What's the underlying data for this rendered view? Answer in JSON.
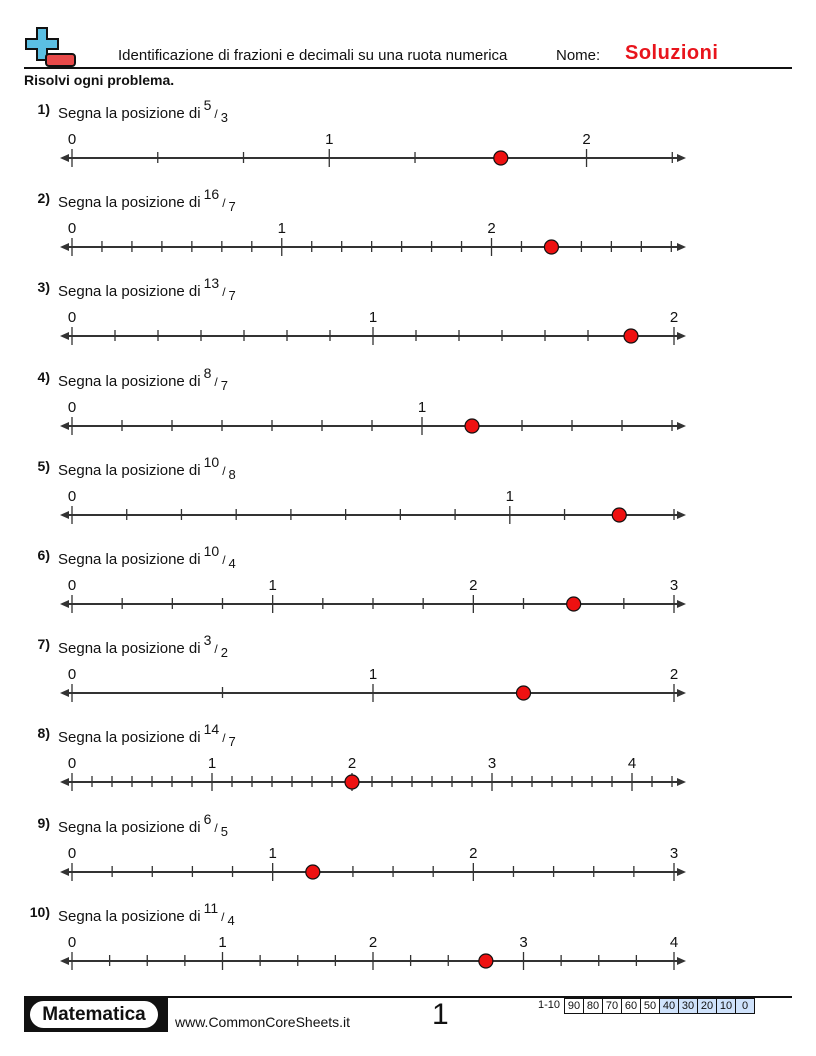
{
  "header": {
    "title": "Identificazione di frazioni e decimali su una ruota numerica",
    "name_label": "Nome:",
    "name_value": "Soluzioni",
    "logo_colors": {
      "plus": "#5bbfe3",
      "minus": "#e84a4a"
    }
  },
  "instructions": "Risolvi ogni problema.",
  "prompt": "Segna la posizione di",
  "colors": {
    "answer_dot": "#ee1111",
    "line": "#333333"
  },
  "problems": [
    {
      "number": "1)",
      "numerator": "5",
      "denominator": "3",
      "labels": [
        "0",
        "1",
        "2"
      ],
      "axis_max": 2.34,
      "answer": 1.6667
    },
    {
      "number": "2)",
      "numerator": "16",
      "denominator": "7",
      "labels": [
        "0",
        "1",
        "2"
      ],
      "axis_max": 2.87,
      "answer": 2.2857
    },
    {
      "number": "3)",
      "numerator": "13",
      "denominator": "7",
      "labels": [
        "0",
        "1",
        "2"
      ],
      "axis_max": 2,
      "answer": 1.8571
    },
    {
      "number": "4)",
      "numerator": "8",
      "denominator": "7",
      "labels": [
        "0",
        "1"
      ],
      "axis_max": 1.72,
      "answer": 1.1429
    },
    {
      "number": "5)",
      "numerator": "10",
      "denominator": "8",
      "labels": [
        "0",
        "1"
      ],
      "axis_max": 1.375,
      "answer": 1.25
    },
    {
      "number": "6)",
      "numerator": "10",
      "denominator": "4",
      "labels": [
        "0",
        "1",
        "2",
        "3"
      ],
      "axis_max": 3,
      "answer": 2.5
    },
    {
      "number": "7)",
      "numerator": "3",
      "denominator": "2",
      "labels": [
        "0",
        "1",
        "2"
      ],
      "axis_max": 2,
      "answer": 1.5
    },
    {
      "number": "8)",
      "numerator": "14",
      "denominator": "7",
      "labels": [
        "0",
        "1",
        "2",
        "3",
        "4"
      ],
      "axis_max": 4.3,
      "answer": 2
    },
    {
      "number": "9)",
      "numerator": "6",
      "denominator": "5",
      "labels": [
        "0",
        "1",
        "2",
        "3"
      ],
      "axis_max": 3,
      "answer": 1.2
    },
    {
      "number": "10)",
      "numerator": "11",
      "denominator": "4",
      "labels": [
        "0",
        "1",
        "2",
        "3",
        "4"
      ],
      "axis_max": 4,
      "answer": 2.75
    }
  ],
  "footer": {
    "brand": "Matematica",
    "site": "www.CommonCoreSheets.it",
    "page": "1",
    "score_label": "1-10",
    "scores": [
      "90",
      "80",
      "70",
      "60",
      "50",
      "40",
      "30",
      "20",
      "10",
      "0"
    ],
    "score_highlight_color": "#cfe2fb"
  }
}
